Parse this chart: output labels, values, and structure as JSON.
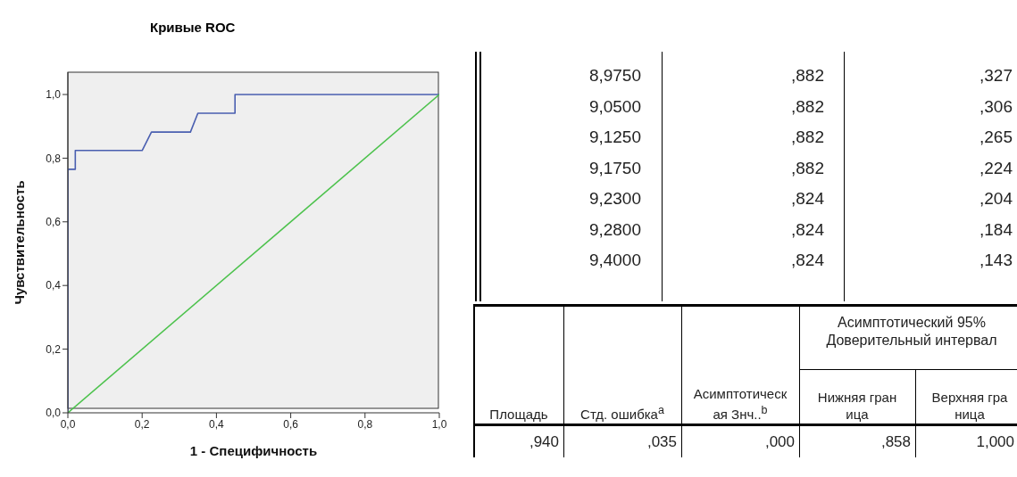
{
  "chart_data": [
    {
      "type": "line",
      "title": "Кривые ROC",
      "xlabel": "1 - Специфичность",
      "ylabel": "Чувствительность",
      "xlim": [
        0,
        1
      ],
      "ylim": [
        0,
        1.07
      ],
      "xticks": [
        {
          "value": 0,
          "label": "0,0"
        },
        {
          "value": 0.2,
          "label": "0,2"
        },
        {
          "value": 0.4,
          "label": "0,4"
        },
        {
          "value": 0.6,
          "label": "0,6"
        },
        {
          "value": 0.8,
          "label": "0,8"
        },
        {
          "value": 1,
          "label": "1,0"
        }
      ],
      "yticks": [
        {
          "value": 0,
          "label": "0,0"
        },
        {
          "value": 0.2,
          "label": "0,2"
        },
        {
          "value": 0.4,
          "label": "0,4"
        },
        {
          "value": 0.6,
          "label": "0,6"
        },
        {
          "value": 0.8,
          "label": "0,8"
        },
        {
          "value": 1,
          "label": "1,0"
        }
      ],
      "series": [
        {
          "color": "#4a5fb0",
          "x": [
            0,
            0,
            0.02,
            0.02,
            0.2,
            0.225,
            0.33,
            0.35,
            0.45,
            0.45,
            1
          ],
          "values": [
            0,
            0.765,
            0.765,
            0.824,
            0.824,
            0.882,
            0.882,
            0.941,
            0.941,
            1,
            1
          ]
        },
        {
          "color": "#4cc24c",
          "x": [
            0,
            1
          ],
          "values": [
            0,
            1
          ]
        }
      ]
    },
    {
      "type": "other",
      "annotations": [
        "8,9750",
        ",882",
        ",327",
        "9,0500",
        ",882",
        ",306",
        "9,1250",
        ",882",
        ",265",
        "9,1750",
        ",882",
        ",224",
        "9,2300",
        ",824",
        ",204",
        "9,2800",
        ",824",
        ",184",
        "9,4000",
        ",824",
        ",143",
        "Асимптотический 95% Доверительный интервал",
        "Площадь",
        "Стд. ошибка$^{a}$",
        "Асимптотическая Знч..$^{b}$",
        "Нижняя граница",
        "Верхняя граница",
        ",940",
        ",035",
        ",000",
        ",858",
        "1,000"
      ]
    }
  ]
}
